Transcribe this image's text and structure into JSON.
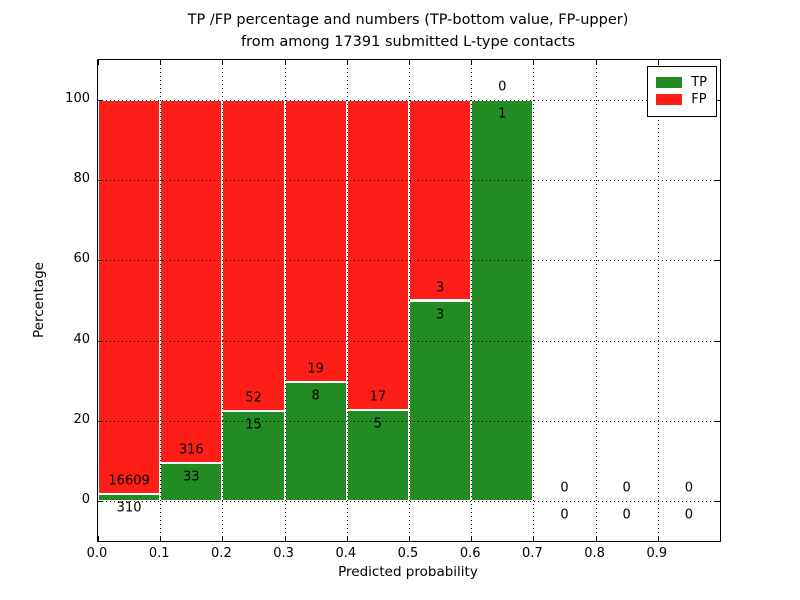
{
  "chart_data": {
    "type": "bar",
    "stacked": true,
    "title_lines": [
      "TP /FP percentage and numbers (TP-bottom value, FP-upper)",
      "from among 17391 submitted L-type contacts"
    ],
    "total_submitted": 17391,
    "xlabel": "Predicted probability",
    "ylabel": "Percentage",
    "xlim": [
      0.0,
      1.0
    ],
    "ylim": [
      -10,
      110
    ],
    "xticks": [
      "0.0",
      "0.1",
      "0.2",
      "0.3",
      "0.4",
      "0.5",
      "0.6",
      "0.7",
      "0.8",
      "0.9"
    ],
    "yticks": [
      "0",
      "20",
      "40",
      "60",
      "80",
      "100"
    ],
    "grid": "dotted",
    "legend_position": "upper right",
    "series": [
      {
        "name": "TP",
        "color": "#228b22"
      },
      {
        "name": "FP",
        "color": "#fd1f17"
      }
    ],
    "bins": [
      {
        "range": [
          0.0,
          0.1
        ],
        "tp": 310,
        "fp": 16609,
        "tp_pct": 1.83,
        "fp_pct": 98.17
      },
      {
        "range": [
          0.1,
          0.2
        ],
        "tp": 33,
        "fp": 316,
        "tp_pct": 9.46,
        "fp_pct": 90.54
      },
      {
        "range": [
          0.2,
          0.3
        ],
        "tp": 15,
        "fp": 52,
        "tp_pct": 22.39,
        "fp_pct": 77.61
      },
      {
        "range": [
          0.3,
          0.4
        ],
        "tp": 8,
        "fp": 19,
        "tp_pct": 29.63,
        "fp_pct": 70.37
      },
      {
        "range": [
          0.4,
          0.5
        ],
        "tp": 5,
        "fp": 17,
        "tp_pct": 22.73,
        "fp_pct": 77.27
      },
      {
        "range": [
          0.5,
          0.6
        ],
        "tp": 3,
        "fp": 3,
        "tp_pct": 50.0,
        "fp_pct": 50.0
      },
      {
        "range": [
          0.6,
          0.7
        ],
        "tp": 1,
        "fp": 0,
        "tp_pct": 100.0,
        "fp_pct": 0.0
      },
      {
        "range": [
          0.7,
          0.8
        ],
        "tp": 0,
        "fp": 0,
        "tp_pct": 0.0,
        "fp_pct": 0.0
      },
      {
        "range": [
          0.8,
          0.9
        ],
        "tp": 0,
        "fp": 0,
        "tp_pct": 0.0,
        "fp_pct": 0.0
      },
      {
        "range": [
          0.9,
          1.0
        ],
        "tp": 0,
        "fp": 0,
        "tp_pct": 0.0,
        "fp_pct": 0.0
      }
    ]
  }
}
